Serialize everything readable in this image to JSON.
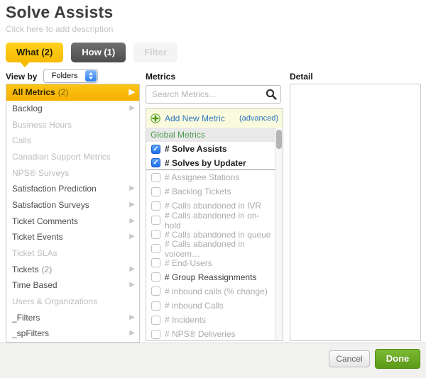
{
  "header": {
    "title": "Solve Assists",
    "subtitle": "Click here to add description"
  },
  "tabs": [
    {
      "label": "What (2)",
      "state": "active"
    },
    {
      "label": "How (1)",
      "state": "normal"
    },
    {
      "label": "Filter",
      "state": "disabled"
    }
  ],
  "view_by": {
    "label": "View by",
    "value": "Folders"
  },
  "columns": {
    "metrics_header": "Metrics",
    "detail_header": "Detail"
  },
  "sidebar": {
    "items": [
      {
        "label": "All Metrics",
        "count": "(2)",
        "selected": true,
        "arrow": true
      },
      {
        "label": "Backlog",
        "arrow": true
      },
      {
        "label": "Business Hours",
        "disabled": true
      },
      {
        "label": "Calls",
        "disabled": true
      },
      {
        "label": "Canadian Support Metrics",
        "disabled": true
      },
      {
        "label": "NPS® Surveys",
        "disabled": true
      },
      {
        "label": "Satisfaction Prediction",
        "arrow": true
      },
      {
        "label": "Satisfaction Surveys",
        "arrow": true
      },
      {
        "label": "Ticket Comments",
        "arrow": true
      },
      {
        "label": "Ticket Events",
        "arrow": true
      },
      {
        "label": "Ticket SLAs",
        "disabled": true
      },
      {
        "label": "Tickets",
        "count": "(2)",
        "arrow": true
      },
      {
        "label": "Time Based",
        "arrow": true
      },
      {
        "label": "Users & Organizations",
        "disabled": true
      },
      {
        "label": "_Filters",
        "arrow": true
      },
      {
        "label": "_spFilters",
        "arrow": true
      }
    ]
  },
  "metrics": {
    "search_placeholder": "Search Metrics...",
    "add_new": {
      "label": "Add New Metric",
      "advanced": "(advanced)"
    },
    "group_header": "Global Metrics",
    "items": [
      {
        "label": "# Solve Assists",
        "checked": true,
        "bold": true
      },
      {
        "label": "# Solves by Updater",
        "checked": true,
        "bold": true,
        "divider": true
      },
      {
        "label": "# Assignee Stations"
      },
      {
        "label": "# Backlog Tickets"
      },
      {
        "label": "# Calls abandoned in IVR"
      },
      {
        "label": "# Calls abandoned in on-hold"
      },
      {
        "label": "# Calls abandoned in queue"
      },
      {
        "label": "# Calls abandoned in voicem…"
      },
      {
        "label": "# End-Users"
      },
      {
        "label": "# Group Reassignments",
        "dark": true
      },
      {
        "label": "# inbound calls (% change)"
      },
      {
        "label": "# inbound Calls"
      },
      {
        "label": "# Incidents"
      },
      {
        "label": "# NPS® Deliveries"
      }
    ]
  },
  "footer": {
    "cancel": "Cancel",
    "done": "Done"
  },
  "icons": {
    "chevron_right": "▶",
    "check": "✓"
  },
  "colors": {
    "accent_yellow": "#f8ba02",
    "selected_row_yellow": "#fbb80a",
    "tab_dark": "#5e5e5e",
    "link_blue": "#2a76bc",
    "group_green": "#4c9a4c",
    "checkbox_blue": "#2f7cf0",
    "done_green": "#6aab24"
  }
}
